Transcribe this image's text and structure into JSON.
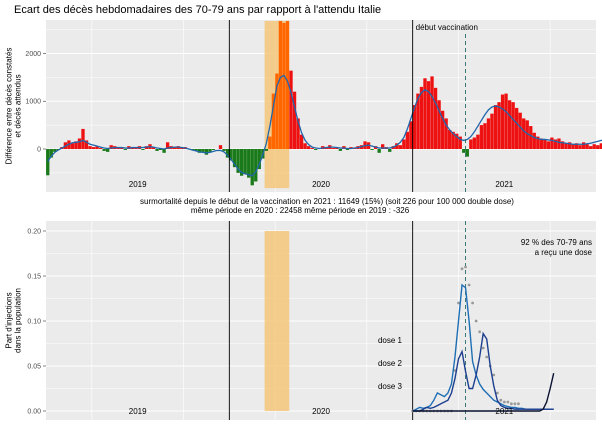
{
  "page": {
    "title": "Ecart des décès hebdomadaires des 70-79 ans par rapport à l'attendu Italie"
  },
  "colors": {
    "panel_bg": "#ebebeb",
    "grid": "#ffffff",
    "positive_bar": "#ee1111",
    "negative_bar": "#1a7a1a",
    "highlight_bar": "#ff6600",
    "highlight_band": "#f5c77a",
    "smooth_line": "#2166ac",
    "dose1": "#1f6fb5",
    "dose2": "#1c3f8f",
    "dose3": "#0a1230",
    "expected_dots": "#999999",
    "vax_line": "#2a6b6b",
    "vax_label": "#2a6b6b",
    "pct_label": "#9b1bb5"
  },
  "chart_data": [
    {
      "type": "bar",
      "ylabel": "Différence entre décès constatés\net décès attendus",
      "ylim": [
        -900,
        2700
      ],
      "yticks": [
        "0",
        "1000",
        "2000"
      ],
      "years": [
        "2019",
        "2020",
        "2021"
      ],
      "annotation": "début vaccination",
      "weeks_start": "2019-01",
      "values": [
        -550,
        -180,
        -60,
        -20,
        40,
        140,
        180,
        120,
        160,
        220,
        420,
        180,
        60,
        40,
        60,
        20,
        -40,
        -60,
        80,
        60,
        20,
        40,
        -20,
        60,
        40,
        20,
        60,
        -20,
        60,
        100,
        40,
        -40,
        -20,
        -80,
        140,
        60,
        40,
        60,
        20,
        40,
        0,
        -20,
        -40,
        -80,
        -60,
        -120,
        -60,
        -20,
        0,
        80,
        -40,
        -180,
        -240,
        -380,
        -500,
        -560,
        -520,
        -600,
        -760,
        -680,
        -420,
        -200,
        -40,
        260,
        1160,
        1580,
        2680,
        2640,
        2680,
        1640,
        1200,
        640,
        300,
        120,
        60,
        20,
        -20,
        0,
        60,
        40,
        80,
        20,
        40,
        -40,
        60,
        -20,
        40,
        20,
        60,
        80,
        160,
        140,
        -20,
        60,
        -80,
        100,
        40,
        -60,
        60,
        120,
        80,
        200,
        360,
        580,
        920,
        1160,
        1300,
        1480,
        1420,
        1520,
        1280,
        1020,
        800,
        640,
        400,
        360,
        320,
        260,
        -80,
        -160,
        200,
        240,
        300,
        500,
        540,
        640,
        740,
        920,
        980,
        1140,
        1160,
        1020,
        980,
        860,
        760,
        640,
        600,
        480,
        340,
        260,
        220,
        200,
        160,
        240,
        200,
        220,
        160,
        120,
        140,
        100,
        120,
        80,
        140,
        100,
        60,
        100,
        80,
        120,
        140,
        200,
        260,
        140
      ],
      "smooth": [
        -260,
        -150,
        -70,
        -20,
        20,
        60,
        100,
        130,
        140,
        150,
        180,
        140,
        100,
        80,
        60,
        40,
        20,
        10,
        20,
        30,
        30,
        30,
        20,
        20,
        30,
        30,
        30,
        30,
        40,
        50,
        40,
        20,
        10,
        0,
        20,
        30,
        40,
        40,
        30,
        20,
        0,
        -20,
        -40,
        -60,
        -70,
        -80,
        -70,
        -50,
        -30,
        -30,
        -60,
        -130,
        -220,
        -320,
        -420,
        -490,
        -520,
        -540,
        -560,
        -480,
        -320,
        -120,
        120,
        480,
        900,
        1320,
        1500,
        1540,
        1420,
        1180,
        880,
        580,
        340,
        180,
        90,
        40,
        20,
        10,
        20,
        30,
        40,
        40,
        30,
        20,
        20,
        10,
        10,
        20,
        30,
        50,
        70,
        80,
        60,
        40,
        20,
        20,
        20,
        20,
        40,
        80,
        140,
        240,
        420,
        640,
        860,
        1060,
        1180,
        1240,
        1200,
        1100,
        960,
        800,
        640,
        500,
        400,
        320,
        260,
        200,
        180,
        200,
        260,
        360,
        480,
        600,
        720,
        820,
        880,
        900,
        880,
        840,
        780,
        700,
        620,
        540,
        460,
        380,
        320,
        280,
        240,
        220,
        200,
        200,
        190,
        180,
        160,
        140,
        130,
        120,
        110,
        100,
        100,
        100,
        100,
        110,
        120,
        140,
        160,
        180,
        190,
        180
      ],
      "highlight_weeks": [
        62,
        69
      ],
      "vax_week": 104,
      "vax_label_week": 119
    },
    {
      "type": "line",
      "ylabel": "Part d'injections\ndans la population",
      "ylim": [
        0,
        0.21
      ],
      "yticks": [
        "0.00",
        "0.05",
        "0.10",
        "0.15",
        "0.20"
      ],
      "years": [
        "2019",
        "2020",
        "2021"
      ],
      "x_start_week": 104,
      "series": [
        {
          "name": "dose 1",
          "values": [
            0,
            0.002,
            0.004,
            0.003,
            0.004,
            0.006,
            0.012,
            0.02,
            0.018,
            0.016,
            0.02,
            0.03,
            0.06,
            0.1,
            0.14,
            0.137,
            0.1,
            0.055,
            0.04,
            0.03,
            0.024,
            0.02,
            0.016,
            0.012,
            0.01,
            0.008,
            0.006,
            0.005,
            0.004,
            0.004,
            0.003,
            0.003,
            0.002,
            0.002,
            0.002,
            0.002,
            0.002,
            0.002,
            0.002,
            0.002,
            0.002
          ]
        },
        {
          "name": "dose 2",
          "values": [
            0,
            0,
            0,
            0.002,
            0.004,
            0.003,
            0.004,
            0.006,
            0.008,
            0.01,
            0.012,
            0.02,
            0.036,
            0.058,
            0.066,
            0.044,
            0.025,
            0.025,
            0.04,
            0.06,
            0.086,
            0.08,
            0.05,
            0.028,
            0.012,
            0.006,
            0.004,
            0.003,
            0.003,
            0.002,
            0.002,
            0.002,
            0.002,
            0.002,
            0.002,
            0.002,
            0.002,
            0.002,
            0.002,
            0.002,
            0.002
          ]
        },
        {
          "name": "dose 3",
          "values": [
            0,
            0,
            0,
            0,
            0,
            0,
            0,
            0,
            0,
            0,
            0,
            0,
            0,
            0,
            0,
            0,
            0,
            0,
            0,
            0,
            0,
            0,
            0,
            0,
            0,
            0,
            0,
            0,
            0,
            0,
            0,
            0,
            0,
            0,
            0,
            0,
            0,
            0.002,
            0.01,
            0.025,
            0.042
          ]
        }
      ],
      "expected_dots": [
        0,
        0,
        0,
        0,
        0,
        0,
        0,
        0,
        0,
        0,
        0,
        0,
        0.045,
        0.12,
        0.158,
        0.16,
        0.14,
        0.12,
        0.1,
        0.088,
        0.07,
        0.06,
        0.05,
        0.04,
        0.02,
        0.012,
        0.01,
        0.01,
        0.008,
        0.008,
        0.008
      ],
      "dose_labels": [
        "dose 1",
        "dose 2",
        "dose 3"
      ],
      "pct_label": "92 % des 70-79 ans\na reçu une dose",
      "highlight_weeks": [
        62,
        69
      ],
      "vax_week": 104,
      "vax_label_week": 119
    }
  ],
  "annotations": {
    "line1": "surmortalité depuis le début de la vaccination en 2021 : 11649  (15%)            (soit 226 pour 100 000 double dose)",
    "line2": "même période en 2020 : 22458            même période en 2019 : -326"
  }
}
